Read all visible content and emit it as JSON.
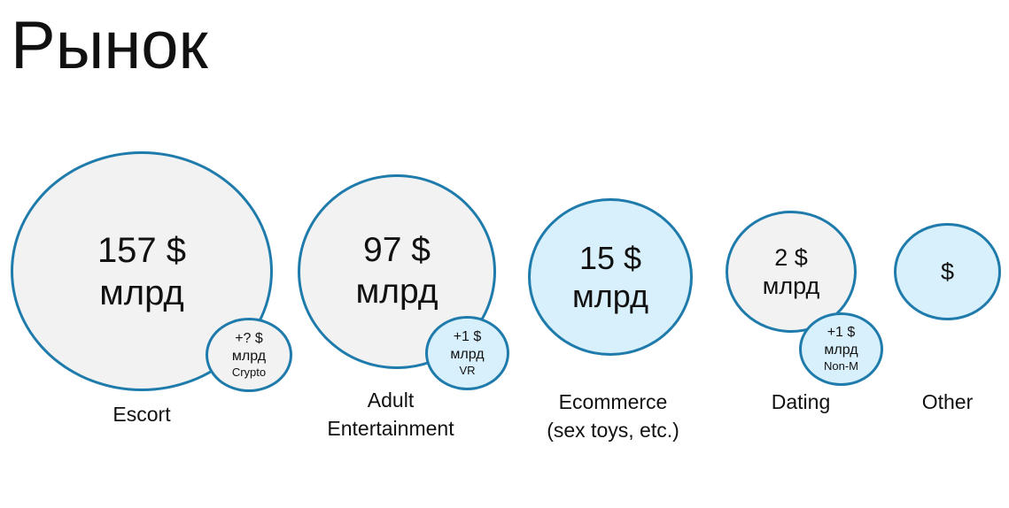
{
  "title": "Рынок",
  "markets": [
    {
      "amount": "157 $",
      "unit": "млрд",
      "label": "Escort",
      "sub": {
        "amount": "+? $",
        "unit": "млрд",
        "note": "Crypto"
      }
    },
    {
      "amount": "97 $",
      "unit": "млрд",
      "label_line1": "Adult",
      "label_line2": "Entertainment",
      "sub": {
        "amount": "+1 $",
        "unit": "млрд",
        "note": "VR"
      }
    },
    {
      "amount": "15 $",
      "unit": "млрд",
      "label_line1": "Ecommerce",
      "label_line2": "(sex toys, etc.)"
    },
    {
      "amount": "2 $",
      "unit": "млрд",
      "label": "Dating",
      "sub": {
        "amount": "+1 $",
        "unit": "млрд",
        "note": "Non-M"
      }
    },
    {
      "amount": "$",
      "label": "Other"
    }
  ],
  "colors": {
    "border": "#1f7bab",
    "grey_fill": "#f2f2f2",
    "blue_fill": "#d8f0fb"
  }
}
